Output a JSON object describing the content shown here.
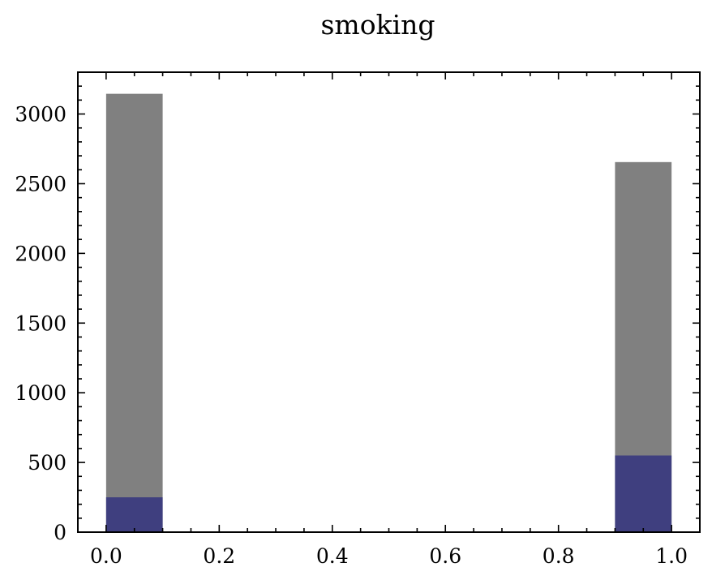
{
  "chart_data": {
    "type": "bar",
    "title": "smoking",
    "xlabel": "",
    "ylabel": "",
    "xlim": [
      -0.05,
      1.05
    ],
    "ylim": [
      0,
      3300
    ],
    "x_ticks": [
      0.0,
      0.2,
      0.4,
      0.6,
      0.8,
      1.0
    ],
    "x_tick_labels": [
      "0.0",
      "0.2",
      "0.4",
      "0.6",
      "0.8",
      "1.0"
    ],
    "y_ticks": [
      0,
      500,
      1000,
      1500,
      2000,
      2500,
      3000
    ],
    "y_tick_labels": [
      "0",
      "500",
      "1000",
      "1500",
      "2000",
      "2500",
      "3000"
    ],
    "bin_width": 0.1,
    "grid": false,
    "series": [
      {
        "color": "#808080",
        "bins": [
          {
            "x_start": 0.0,
            "x_end": 0.1,
            "value": 3145
          },
          {
            "x_start": 0.9,
            "x_end": 1.0,
            "value": 2655
          }
        ]
      },
      {
        "color": "#3f3f7f",
        "bins": [
          {
            "x_start": 0.0,
            "x_end": 0.1,
            "value": 250
          },
          {
            "x_start": 0.9,
            "x_end": 1.0,
            "value": 550
          }
        ]
      }
    ]
  }
}
